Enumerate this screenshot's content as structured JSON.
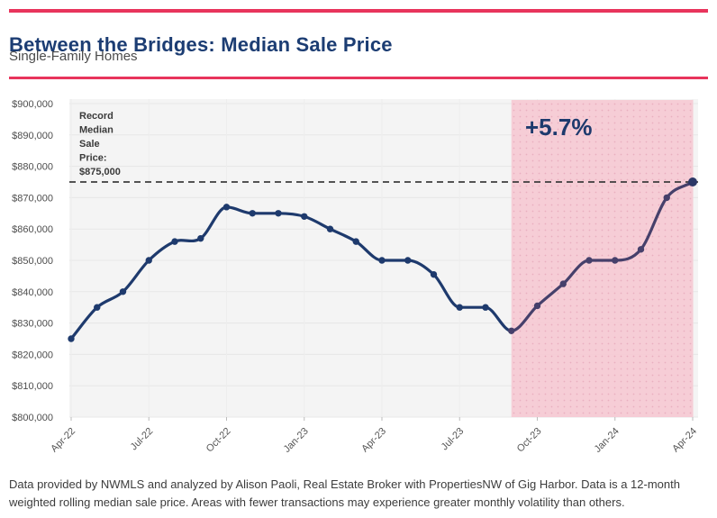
{
  "header": {
    "title": "Between the Bridges: Median Sale Price",
    "subtitle": "Single-Family Homes",
    "accent_color": "#E8345C",
    "title_color": "#1C3D73"
  },
  "chart_data": {
    "type": "line",
    "title": "Between the Bridges: Median Sale Price",
    "subtitle": "Single-Family Homes",
    "x": [
      "Apr-22",
      "May-22",
      "Jun-22",
      "Jul-22",
      "Aug-22",
      "Sep-22",
      "Oct-22",
      "Nov-22",
      "Dec-22",
      "Jan-23",
      "Feb-23",
      "Mar-23",
      "Apr-23",
      "May-23",
      "Jun-23",
      "Jul-23",
      "Aug-23",
      "Sep-23",
      "Oct-23",
      "Nov-23",
      "Dec-23",
      "Jan-24",
      "Feb-24",
      "Mar-24",
      "Apr-24"
    ],
    "series": [
      {
        "name": "12-month weighted rolling median sale price",
        "values": [
          825000,
          835000,
          840000,
          850000,
          856000,
          857000,
          867000,
          865000,
          865000,
          864000,
          860000,
          856000,
          850000,
          850000,
          845500,
          835000,
          835000,
          827500,
          835500,
          842500,
          850000,
          850000,
          853500,
          870000,
          875000
        ]
      }
    ],
    "ylim": [
      800000,
      900000
    ],
    "ytick_step": 10000,
    "ytick_labels": [
      "$800,000",
      "$810,000",
      "$820,000",
      "$830,000",
      "$840,000",
      "$850,000",
      "$860,000",
      "$870,000",
      "$880,000",
      "$890,000",
      "$900,000"
    ],
    "xtick_labels": [
      "Apr-22",
      "Jul-22",
      "Oct-22",
      "Jan-23",
      "Apr-23",
      "Jul-23",
      "Oct-23",
      "Jan-24",
      "Apr-24"
    ],
    "grid": true,
    "plot_bg": "#F4F4F4",
    "line_color": "#1E3A6D",
    "line_color_in_band": "#46406B",
    "end_marker_color": "#2B3766",
    "reference_line": {
      "value": 875000,
      "label": "Record Median Sale Price: $875,000",
      "label_lines": [
        "Record",
        "Median",
        "Sale",
        "Price:",
        "$875,000"
      ],
      "color": "#3D3D3D"
    },
    "shaded_region": {
      "from": "Sep-23",
      "to": "Apr-24",
      "label": "+5.7%",
      "fill": "#F6CAD4",
      "dot_color": "#E9AFBF",
      "label_color": "#1E3A6D"
    },
    "legend": "none"
  },
  "footer": {
    "line1": "Data provided by NWMLS and analyzed by Alison Paoli, Real Estate Broker with PropertiesNW of Gig Harbor. Data is a 12-month",
    "line2": "weighted rolling median sale price. Areas with fewer transactions may experience greater monthly volatility than others."
  }
}
